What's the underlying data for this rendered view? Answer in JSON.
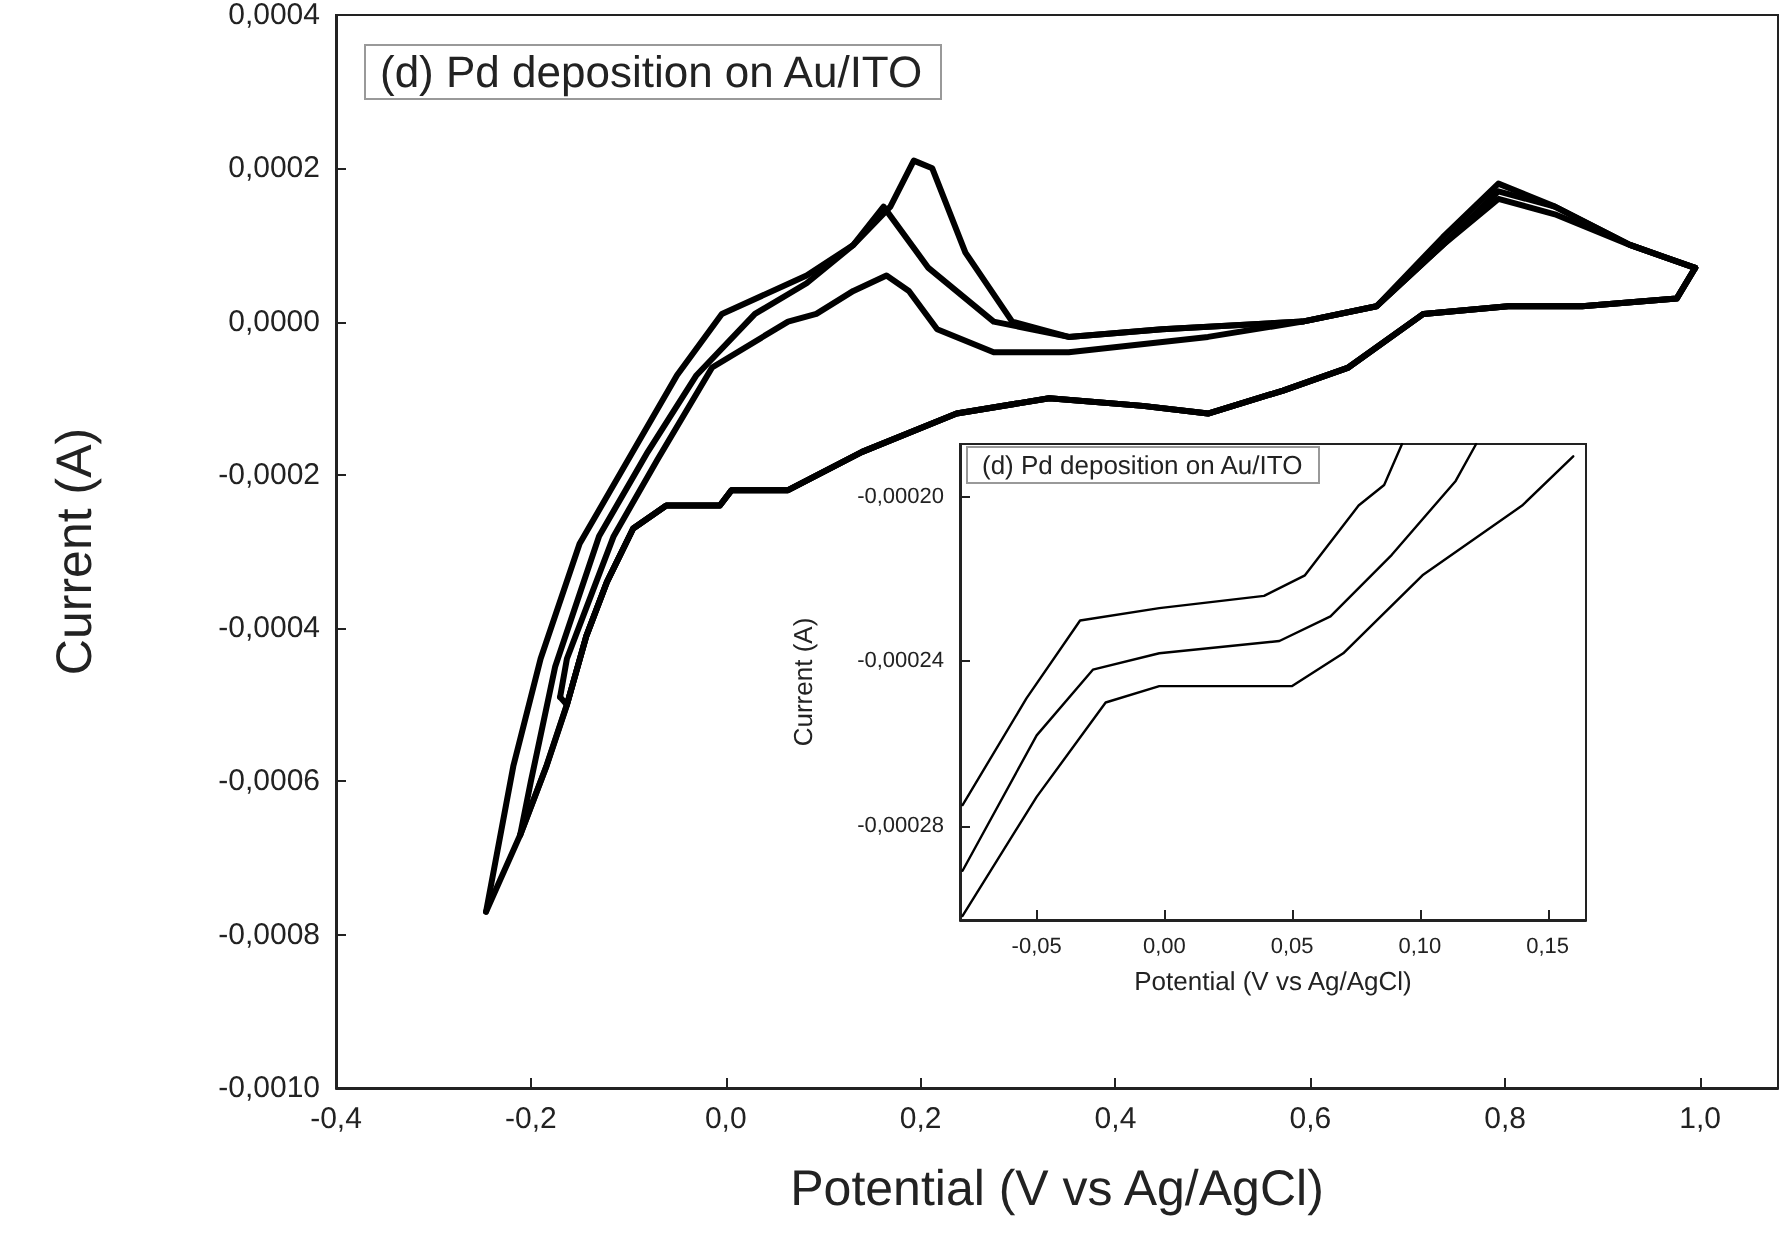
{
  "chart_data": [
    {
      "type": "line",
      "title": "(d) Pd deposition on Au/ITO",
      "xlabel": "Potential (V vs Ag/AgCl)",
      "ylabel": "Current (A)",
      "marker": "none",
      "line_style": "solid",
      "xlim": [
        -0.4,
        1.08
      ],
      "ylim": [
        -0.001,
        0.0004
      ],
      "xticks": [
        {
          "value": -0.4,
          "label": "-0,4"
        },
        {
          "value": -0.2,
          "label": "-0,2"
        },
        {
          "value": 0,
          "label": "0,0"
        },
        {
          "value": 0.2,
          "label": "0,2"
        },
        {
          "value": 0.4,
          "label": "0,4"
        },
        {
          "value": 0.6,
          "label": "0,6"
        },
        {
          "value": 0.8,
          "label": "0,8"
        },
        {
          "value": 1.0,
          "label": "1,0"
        }
      ],
      "yticks": [
        {
          "value": -0.001,
          "label": "-0,0010"
        },
        {
          "value": -0.0008,
          "label": "-0,0008"
        },
        {
          "value": -0.0006,
          "label": "-0,0006"
        },
        {
          "value": -0.0004,
          "label": "-0,0004"
        },
        {
          "value": -0.0002,
          "label": "-0,0002"
        },
        {
          "value": 0,
          "label": "0,0000"
        },
        {
          "value": 0.0002,
          "label": "0,0002"
        },
        {
          "value": 0.0004,
          "label": "0,0004"
        }
      ],
      "series": [
        {
          "color": "#000000",
          "x": [
            -0.246,
            -0.218,
            -0.19,
            -0.15,
            -0.1,
            -0.05,
            -0.004,
            0.083,
            0.131,
            0.169,
            0.193,
            0.212,
            0.246,
            0.294,
            0.352,
            0.448,
            0.592,
            0.668,
            0.736,
            0.793,
            0.851,
            0.928,
            0.995
          ],
          "values": [
            -0.00077,
            -0.00058,
            -0.00044,
            -0.00029,
            -0.00018,
            -7e-05,
            1e-05,
            6e-05,
            0.0001,
            0.00015,
            0.00021,
            0.0002,
            9e-05,
            0,
            -2e-05,
            -1e-05,
            0,
            2e-05,
            0.00011,
            0.00018,
            0.00015,
            0.0001,
            7e-05
          ]
        },
        {
          "color": "#000000",
          "x": [
            0.995,
            0.976,
            0.879,
            0.803,
            0.716,
            0.639,
            0.572,
            0.495,
            0.428,
            0.332,
            0.237,
            0.14,
            0.064,
            0.006,
            -0.006,
            -0.061,
            -0.095,
            -0.122,
            -0.143,
            -0.163,
            -0.184,
            -0.211,
            -0.232,
            -0.246
          ],
          "values": [
            7e-05,
            3e-05,
            2e-05,
            2e-05,
            1e-05,
            -6e-05,
            -9e-05,
            -0.00012,
            -0.00011,
            -0.0001,
            -0.00012,
            -0.00017,
            -0.00022,
            -0.00022,
            -0.00024,
            -0.00024,
            -0.00027,
            -0.00034,
            -0.00041,
            -0.0005,
            -0.00058,
            -0.00067,
            -0.00073,
            -0.00077
          ]
        },
        {
          "color": "#000000",
          "x": [
            -0.211,
            -0.2,
            -0.175,
            -0.13,
            -0.08,
            -0.03,
            0.03,
            0.083,
            0.131,
            0.162,
            0.208,
            0.275,
            0.352,
            0.448,
            0.592,
            0.668,
            0.736,
            0.793,
            0.851,
            0.928,
            0.995
          ],
          "values": [
            -0.00067,
            -0.0006,
            -0.00045,
            -0.00028,
            -0.00017,
            -7e-05,
            1e-05,
            5e-05,
            0.0001,
            0.00015,
            7e-05,
            0,
            -2e-05,
            -1e-05,
            0,
            2e-05,
            0.0001,
            0.00017,
            0.00015,
            0.0001,
            7e-05
          ]
        },
        {
          "color": "#000000",
          "x": [
            0.995,
            0.976,
            0.879,
            0.803,
            0.716,
            0.639,
            0.572,
            0.495,
            0.428,
            0.332,
            0.237,
            0.14,
            0.064,
            0.006,
            -0.006,
            -0.061,
            -0.095,
            -0.122,
            -0.143,
            -0.163,
            -0.184,
            -0.211
          ],
          "values": [
            7e-05,
            3e-05,
            2e-05,
            2e-05,
            1e-05,
            -6e-05,
            -9e-05,
            -0.00012,
            -0.00011,
            -0.0001,
            -0.00012,
            -0.00017,
            -0.00022,
            -0.00022,
            -0.00024,
            -0.00024,
            -0.00027,
            -0.00034,
            -0.00041,
            -0.0005,
            -0.00058,
            -0.00067
          ]
        },
        {
          "color": "#000000",
          "x": [
            -0.17,
            -0.163,
            -0.115,
            -0.07,
            -0.014,
            0.064,
            0.093,
            0.131,
            0.165,
            0.188,
            0.217,
            0.275,
            0.352,
            0.495,
            0.592,
            0.668,
            0.736,
            0.793,
            0.851,
            0.928,
            0.995
          ],
          "values": [
            -0.00049,
            -0.00044,
            -0.00028,
            -0.00018,
            -6e-05,
            0,
            1e-05,
            4e-05,
            6e-05,
            4e-05,
            -1e-05,
            -4e-05,
            -4e-05,
            -2e-05,
            0,
            2e-05,
            0.0001,
            0.00016,
            0.00014,
            0.0001,
            7e-05
          ]
        },
        {
          "color": "#000000",
          "x": [
            0.995,
            0.976,
            0.879,
            0.803,
            0.716,
            0.639,
            0.572,
            0.495,
            0.428,
            0.332,
            0.237,
            0.14,
            0.064,
            0.006,
            -0.006,
            -0.061,
            -0.095,
            -0.122,
            -0.143,
            -0.163,
            -0.17
          ],
          "values": [
            7e-05,
            3e-05,
            2e-05,
            2e-05,
            1e-05,
            -6e-05,
            -9e-05,
            -0.00012,
            -0.00011,
            -0.0001,
            -0.00012,
            -0.00017,
            -0.00022,
            -0.00022,
            -0.00024,
            -0.00024,
            -0.00027,
            -0.00034,
            -0.00041,
            -0.0005,
            -0.00049
          ]
        }
      ]
    },
    {
      "type": "line",
      "title": "(d) Pd deposition on Au/ITO",
      "xlabel": "Potential (V vs Ag/AgCl)",
      "ylabel": "Current (A)",
      "marker": "none",
      "line_style": "solid",
      "xlim": [
        -0.08,
        0.165
      ],
      "ylim": [
        -0.000303,
        -0.000187
      ],
      "xticks": [
        {
          "value": -0.05,
          "label": "-0,05"
        },
        {
          "value": 0,
          "label": "0,00"
        },
        {
          "value": 0.05,
          "label": "0,05"
        },
        {
          "value": 0.1,
          "label": "0,10"
        },
        {
          "value": 0.15,
          "label": "0,15"
        }
      ],
      "yticks": [
        {
          "value": -0.0002,
          "label": "-0,00020"
        },
        {
          "value": -0.00024,
          "label": "-0,00024"
        },
        {
          "value": -0.00028,
          "label": "-0,00028"
        }
      ],
      "series": [
        {
          "color": "#000000",
          "x": [
            -0.079,
            -0.054,
            -0.033,
            -0.002,
            0.039,
            0.055,
            0.076,
            0.086,
            0.093
          ],
          "values": [
            -0.000275,
            -0.000249,
            -0.00023,
            -0.000227,
            -0.000224,
            -0.000219,
            -0.000202,
            -0.000197,
            -0.000187
          ]
        },
        {
          "color": "#000000",
          "x": [
            -0.079,
            -0.05,
            -0.028,
            -0.002,
            0.045,
            0.065,
            0.089,
            0.114,
            0.122
          ],
          "values": [
            -0.000291,
            -0.000258,
            -0.000242,
            -0.000238,
            -0.000235,
            -0.000229,
            -0.000214,
            -0.000196,
            -0.000187
          ]
        },
        {
          "color": "#000000",
          "x": [
            -0.079,
            -0.05,
            -0.023,
            -0.002,
            0.05,
            0.07,
            0.101,
            0.14,
            0.16
          ],
          "values": [
            -0.000302,
            -0.000273,
            -0.00025,
            -0.000246,
            -0.000246,
            -0.000238,
            -0.000219,
            -0.000202,
            -0.00019
          ]
        }
      ]
    }
  ]
}
